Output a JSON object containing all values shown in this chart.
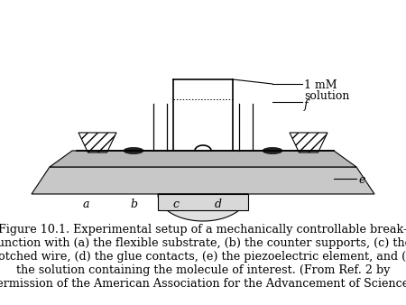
{
  "caption_lines": [
    "Figure 10.1. Experimental setup of a mechanically controllable break-",
    "junction with (a) the flexible substrate, (b) the counter supports, (c) the",
    "notched wire, (d) the glue contacts, (e) the piezoelectric element, and (f)",
    "the solution containing the molecule of interest. (From Ref. 2 by",
    "permission of the American Association for the Advancement of Science.)"
  ],
  "label_1mM": "1 mM",
  "label_solution": "solution",
  "label_f": "f",
  "label_e": "e",
  "label_a": "a",
  "label_b": "b",
  "label_c": "c",
  "label_d": "d",
  "bg_color": "#ffffff",
  "line_color": "#000000",
  "font_size_caption": 9.2,
  "font_size_labels": 9.0
}
